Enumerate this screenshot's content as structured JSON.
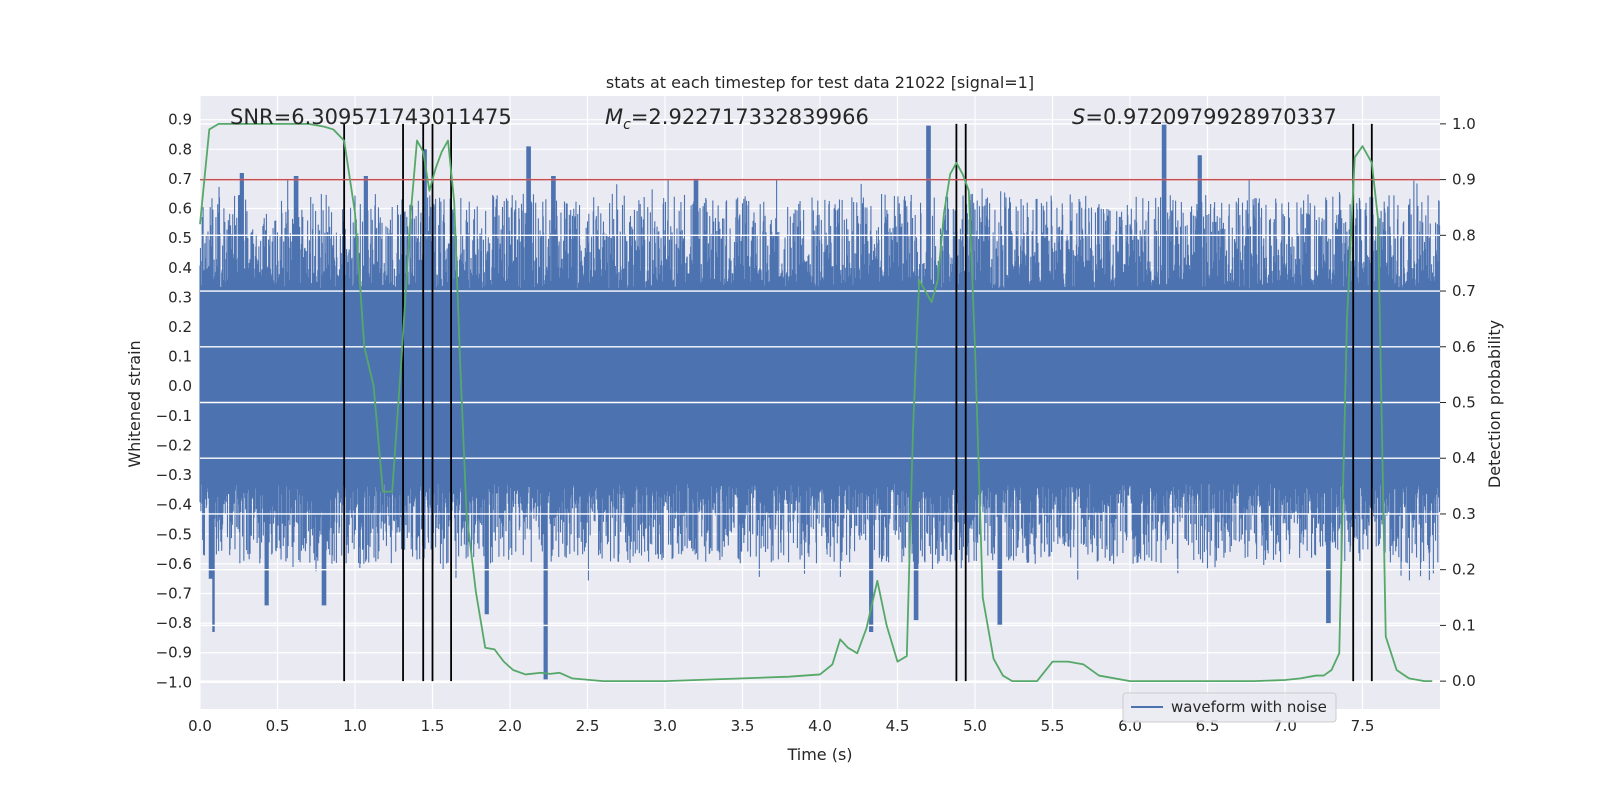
{
  "chart_data": {
    "type": "line",
    "title": "stats at each timestep for test data 21022 [signal=1]",
    "xlabel": "Time (s)",
    "ylabel_left": "Whitened strain",
    "ylabel_right": "Detection probability",
    "xlim": [
      0.0,
      8.0
    ],
    "ylim_left": [
      -1.09,
      0.98
    ],
    "ylim_right": [
      -0.05,
      1.05
    ],
    "grid": true,
    "x_ticks": [
      "0.0",
      "0.5",
      "1.0",
      "1.5",
      "2.0",
      "2.5",
      "3.0",
      "3.5",
      "4.0",
      "4.5",
      "5.0",
      "5.5",
      "6.0",
      "6.5",
      "7.0",
      "7.5"
    ],
    "y_ticks_left": [
      "0.9",
      "0.8",
      "0.7",
      "0.6",
      "0.5",
      "0.4",
      "0.3",
      "0.2",
      "0.1",
      "0.0",
      "−0.1",
      "−0.2",
      "−0.3",
      "−0.4",
      "−0.5",
      "−0.6",
      "−0.7",
      "−0.8",
      "−0.9",
      "−1.0"
    ],
    "y_ticks_right": [
      "1.0",
      "0.9",
      "0.8",
      "0.7",
      "0.6",
      "0.5",
      "0.4",
      "0.3",
      "0.2",
      "0.1",
      "0.0"
    ],
    "annotations": {
      "snr": "SNR=6.309571743011475",
      "mc_symbol": "M",
      "mc_sub": "c",
      "mc_value": "=2.922717332839966",
      "s_symbol": "S",
      "s_value": "=0.9720979928970337"
    },
    "legend": {
      "label": "waveform with noise",
      "location": "lower-right"
    },
    "series": [
      {
        "name": "waveform with noise",
        "axis": "left",
        "color": "#4c72b0",
        "render": "dense-vertical-lines",
        "typical_envelope": [
          -0.42,
          0.5
        ],
        "peaks": [
          {
            "x": 0.27,
            "y": 0.72
          },
          {
            "x": 0.62,
            "y": 0.71
          },
          {
            "x": 1.07,
            "y": 0.71
          },
          {
            "x": 1.45,
            "y": 0.8
          },
          {
            "x": 2.12,
            "y": 0.81
          },
          {
            "x": 2.28,
            "y": 0.71
          },
          {
            "x": 3.2,
            "y": 0.7
          },
          {
            "x": 4.7,
            "y": 0.88
          },
          {
            "x": 6.22,
            "y": 0.89
          },
          {
            "x": 6.45,
            "y": 0.78
          }
        ],
        "troughs": [
          {
            "x": 0.07,
            "y": -0.65
          },
          {
            "x": 0.08,
            "y": -0.83
          },
          {
            "x": 0.43,
            "y": -0.74
          },
          {
            "x": 0.8,
            "y": -0.74
          },
          {
            "x": 1.85,
            "y": -0.77
          },
          {
            "x": 2.23,
            "y": -0.99
          },
          {
            "x": 4.33,
            "y": -0.83
          },
          {
            "x": 4.62,
            "y": -0.79
          },
          {
            "x": 5.16,
            "y": -0.81
          },
          {
            "x": 7.28,
            "y": -0.8
          }
        ]
      },
      {
        "name": "detection probability",
        "axis": "right",
        "color": "#55a868",
        "x": [
          0.0,
          0.06,
          0.12,
          0.2,
          0.3,
          0.4,
          0.5,
          0.6,
          0.7,
          0.8,
          0.86,
          0.93,
          1.0,
          1.06,
          1.12,
          1.18,
          1.24,
          1.3,
          1.36,
          1.4,
          1.44,
          1.48,
          1.52,
          1.56,
          1.6,
          1.64,
          1.68,
          1.72,
          1.78,
          1.84,
          1.9,
          1.96,
          2.02,
          2.1,
          2.2,
          2.26,
          2.32,
          2.4,
          2.6,
          3.0,
          3.5,
          3.8,
          4.0,
          4.08,
          4.13,
          4.18,
          4.24,
          4.3,
          4.37,
          4.43,
          4.5,
          4.56,
          4.6,
          4.64,
          4.68,
          4.72,
          4.76,
          4.8,
          4.84,
          4.88,
          4.92,
          4.96,
          5.0,
          5.05,
          5.12,
          5.18,
          5.24,
          5.3,
          5.4,
          5.5,
          5.6,
          5.7,
          5.8,
          6.0,
          6.5,
          6.8,
          7.0,
          7.1,
          7.2,
          7.25,
          7.3,
          7.35,
          7.4,
          7.45,
          7.5,
          7.56,
          7.6,
          7.65,
          7.72,
          7.8,
          7.9,
          7.95
        ],
        "y": [
          0.82,
          0.99,
          1.0,
          1.0,
          1.0,
          1.0,
          1.0,
          1.0,
          1.0,
          0.995,
          0.99,
          0.97,
          0.84,
          0.6,
          0.53,
          0.34,
          0.34,
          0.58,
          0.84,
          0.97,
          0.95,
          0.88,
          0.92,
          0.95,
          0.97,
          0.86,
          0.56,
          0.3,
          0.16,
          0.06,
          0.057,
          0.035,
          0.02,
          0.012,
          0.015,
          0.013,
          0.015,
          0.005,
          0.0,
          0.0,
          0.005,
          0.008,
          0.012,
          0.03,
          0.075,
          0.06,
          0.05,
          0.095,
          0.18,
          0.1,
          0.035,
          0.045,
          0.45,
          0.72,
          0.7,
          0.68,
          0.72,
          0.84,
          0.91,
          0.93,
          0.91,
          0.88,
          0.6,
          0.15,
          0.04,
          0.01,
          0.0,
          0.0,
          0.0,
          0.035,
          0.035,
          0.03,
          0.01,
          0.0,
          0.0,
          0.0,
          0.002,
          0.005,
          0.01,
          0.01,
          0.02,
          0.05,
          0.65,
          0.94,
          0.96,
          0.93,
          0.83,
          0.08,
          0.02,
          0.005,
          0.0,
          0.0
        ]
      }
    ],
    "threshold_line": {
      "axis": "right",
      "y": 0.9,
      "color": "#c44e52"
    },
    "vertical_lines": {
      "color": "#000000",
      "x": [
        0.93,
        1.31,
        1.44,
        1.5,
        1.62,
        4.88,
        4.94,
        7.44,
        7.56
      ]
    }
  }
}
